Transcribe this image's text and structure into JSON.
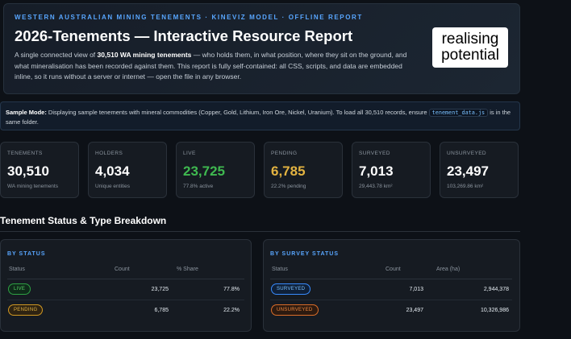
{
  "hero": {
    "eyebrow": "WESTERN AUSTRALIAN MINING TENEMENTS · KINEVIZ MODEL · OFFLINE REPORT",
    "title": "2026-Tenements — Interactive Resource Report",
    "desc_pre": "A single connected view of ",
    "desc_bold": "30,510 WA mining tenements",
    "desc_post": " — who holds them, in what position, where they sit on the ground, and what mineralisation has been recorded against them. This report is fully self-contained: all CSS, scripts, and data are embedded inline, so it runs without a server or internet — open the file in any browser.",
    "logo_line1": "realising",
    "logo_line2": "potential"
  },
  "notice": {
    "bold": "Sample Mode:",
    "text": " Displaying sample tenements with mineral commodities (Copper, Gold, Lithium, Iron Ore, Nickel, Uranium). To load all 30,510 records, ensure ",
    "code": "tenement_data.js",
    "text2": " is in the same folder."
  },
  "cards": [
    {
      "label": "TENEMENTS",
      "value": "30,510",
      "sub": "WA mining tenements",
      "color": "#ffffff"
    },
    {
      "label": "HOLDERS",
      "value": "4,034",
      "sub": "Unique entities",
      "color": "#ffffff"
    },
    {
      "label": "LIVE",
      "value": "23,725",
      "sub": "77.8% active",
      "color": "#3fb950"
    },
    {
      "label": "PENDING",
      "value": "6,785",
      "sub": "22.2% pending",
      "color": "#e3b341"
    },
    {
      "label": "SURVEYED",
      "value": "7,013",
      "sub": "29,443.78 km²",
      "color": "#ffffff"
    },
    {
      "label": "UNSURVEYED",
      "value": "23,497",
      "sub": "103,269.86 km²",
      "color": "#ffffff"
    }
  ],
  "section_title": "Tenement Status & Type Breakdown",
  "status_panel": {
    "title": "BY STATUS",
    "headers": [
      "Status",
      "Count",
      "% Share"
    ],
    "rows": [
      {
        "badge": "LIVE",
        "count": "23,725",
        "share": "77.8%"
      },
      {
        "badge": "PENDING",
        "count": "6,785",
        "share": "22.2%"
      }
    ]
  },
  "survey_panel": {
    "title": "BY SURVEY STATUS",
    "headers": [
      "Status",
      "Count",
      "Area (ha)"
    ],
    "rows": [
      {
        "badge": "SURVEYED",
        "count": "7,013",
        "area": "2,944,378"
      },
      {
        "badge": "UNSURVEYED",
        "count": "23,497",
        "area": "10,326,986"
      }
    ]
  }
}
